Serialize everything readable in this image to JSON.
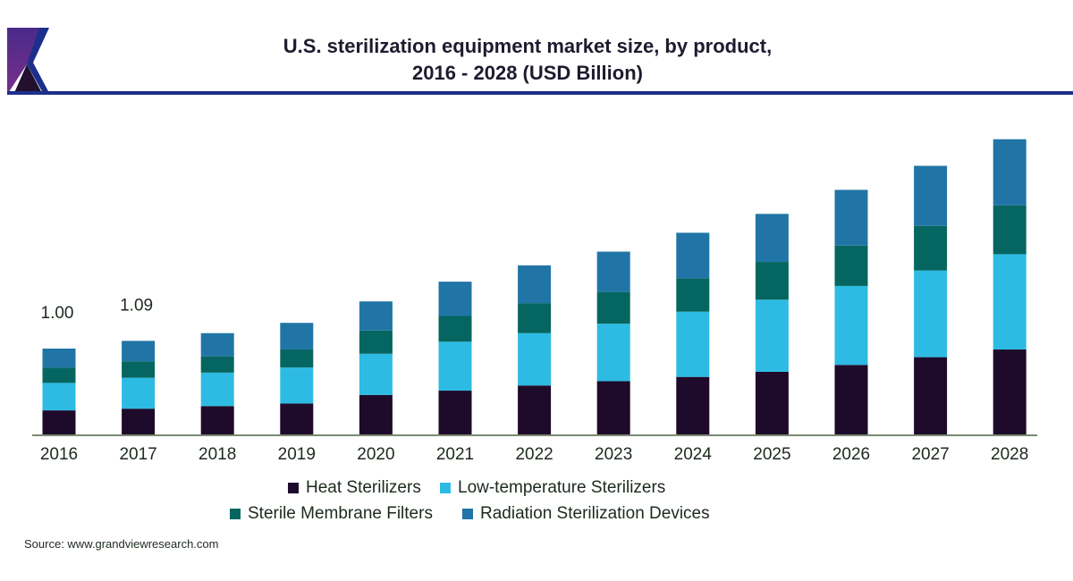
{
  "header": {
    "title_line1": "U.S. sterilization equipment market size, by product,",
    "title_line2": "2016 - 2028 (USD Billion)"
  },
  "colors": {
    "heat": "#1e0a2a",
    "low_temp": "#2dbbe3",
    "membrane": "#056661",
    "radiation": "#2175a6",
    "axis": "#7a8a72",
    "logo_purple": "#5a2a8a",
    "logo_navy": "#1c2f8c"
  },
  "chart_data": {
    "type": "bar",
    "stacked": true,
    "title": "U.S. sterilization equipment market size, by product, 2016 - 2028 (USD Billion)",
    "xlabel": "",
    "ylabel": "",
    "ylim": [
      0,
      3.6
    ],
    "grid": false,
    "legend_position": "bottom",
    "categories": [
      "2016",
      "2017",
      "2018",
      "2019",
      "2020",
      "2021",
      "2022",
      "2023",
      "2024",
      "2025",
      "2026",
      "2027",
      "2028"
    ],
    "series": [
      {
        "name": "Heat Sterilizers",
        "values": [
          0.28,
          0.3,
          0.33,
          0.36,
          0.46,
          0.51,
          0.57,
          0.62,
          0.67,
          0.73,
          0.81,
          0.9,
          0.99
        ]
      },
      {
        "name": "Low-temperature Sterilizers",
        "values": [
          0.32,
          0.36,
          0.39,
          0.42,
          0.48,
          0.57,
          0.61,
          0.67,
          0.76,
          0.84,
          0.92,
          1.01,
          1.11
        ]
      },
      {
        "name": "Sterile Membrane Filters",
        "values": [
          0.18,
          0.19,
          0.19,
          0.21,
          0.27,
          0.3,
          0.35,
          0.37,
          0.39,
          0.44,
          0.47,
          0.52,
          0.57
        ]
      },
      {
        "name": "Radiation Sterilization Devices",
        "values": [
          0.22,
          0.24,
          0.27,
          0.31,
          0.34,
          0.4,
          0.44,
          0.47,
          0.53,
          0.56,
          0.65,
          0.7,
          0.77
        ]
      }
    ],
    "annotations": [
      {
        "category": "2016",
        "text": "1.00"
      },
      {
        "category": "2017",
        "text": "1.09"
      }
    ]
  },
  "legend": [
    {
      "label": "Heat Sterilizers",
      "key": "heat"
    },
    {
      "label": "Low-temperature Sterilizers",
      "key": "low_temp"
    },
    {
      "label": "Sterile Membrane Filters",
      "key": "membrane"
    },
    {
      "label": "Radiation Sterilization Devices",
      "key": "radiation"
    }
  ],
  "source": "Source: www.grandviewresearch.com"
}
